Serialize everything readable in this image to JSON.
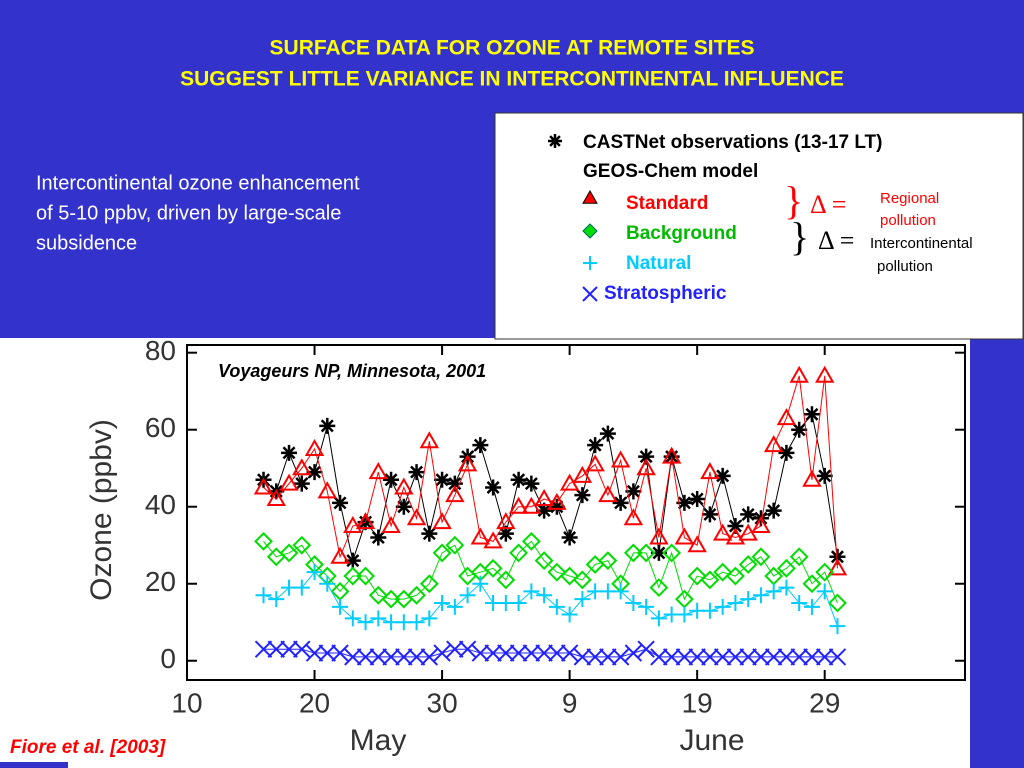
{
  "title": [
    "SURFACE DATA FOR OZONE AT REMOTE SITES",
    "SUGGEST LITTLE VARIANCE IN INTERCONTINENTAL INFLUENCE"
  ],
  "text": [
    "Intercontinental ozone enhancement",
    "of 5-10 ppbv, driven by large-scale",
    "subsidence"
  ],
  "citation": "Fiore et al. [2003]",
  "legend": {
    "model_label": "GEOS-Chem model",
    "brace": "}",
    "delta": "Δ =",
    "regional": [
      "Regional",
      "pollution"
    ],
    "intercontinental": [
      "Intercontinental",
      "pollution"
    ]
  },
  "chart_data": {
    "type": "line",
    "annotation": "Voyageurs NP, Minnesota, 2001",
    "ylabel": "Ozone (ppbv)",
    "months": [
      "May",
      "June"
    ],
    "x": [
      16,
      17,
      18,
      19,
      20,
      21,
      22,
      23,
      24,
      25,
      26,
      27,
      28,
      29,
      30,
      31,
      32,
      33,
      34,
      35,
      36,
      37,
      38,
      39,
      40,
      41,
      42,
      43,
      44,
      45,
      46,
      47,
      48,
      49,
      50,
      51,
      52,
      53,
      54,
      55,
      56,
      57,
      58,
      59,
      60,
      61
    ],
    "xlim": [
      10,
      71
    ],
    "xticks": [
      10,
      20,
      30,
      {
        "value": 40,
        "label": "9"
      },
      {
        "value": 50,
        "label": "19"
      },
      {
        "value": 60,
        "label": "29"
      }
    ],
    "ylim": [
      -5,
      82
    ],
    "yticks": [
      0,
      20,
      40,
      60,
      80
    ],
    "series": [
      {
        "name": "CASTNet observations (13-17 LT)",
        "color": "#000000",
        "marker": "star",
        "values": [
          47,
          44,
          54,
          46,
          49,
          61,
          41,
          26,
          36,
          32,
          47,
          40,
          49,
          33,
          47,
          46,
          53,
          56,
          45,
          33,
          47,
          46,
          39,
          40,
          32,
          43,
          56,
          59,
          41,
          44,
          53,
          28,
          53,
          41,
          42,
          38,
          48,
          35,
          38,
          37,
          39,
          54,
          60,
          64,
          48,
          27
        ]
      },
      {
        "name": "Standard",
        "color": "#ff0000",
        "marker": "triangle",
        "values": [
          45,
          42,
          46,
          50,
          55,
          44,
          27,
          35,
          36,
          49,
          35,
          45,
          37,
          57,
          36,
          43,
          51,
          32,
          31,
          36,
          40,
          40,
          42,
          41,
          46,
          48,
          51,
          43,
          52,
          37,
          50,
          32,
          53,
          32,
          30,
          49,
          33,
          32,
          33,
          35,
          56,
          63,
          74,
          47,
          74,
          24
        ]
      },
      {
        "name": "Background",
        "color": "#00dd00",
        "marker": "diamond",
        "values": [
          31,
          27,
          28,
          30,
          25,
          22,
          18,
          22,
          22,
          17,
          16,
          16,
          17,
          20,
          28,
          30,
          22,
          23,
          24,
          21,
          28,
          31,
          26,
          23,
          22,
          21,
          25,
          26,
          20,
          28,
          28,
          19,
          28,
          16,
          22,
          21,
          23,
          22,
          25,
          27,
          22,
          24,
          27,
          20,
          23,
          15
        ]
      },
      {
        "name": "Natural",
        "color": "#00ccff",
        "marker": "plus",
        "values": [
          17,
          16,
          19,
          19,
          23,
          20,
          14,
          11,
          10,
          11,
          10,
          10,
          10,
          11,
          15,
          14,
          17,
          20,
          15,
          15,
          15,
          18,
          17,
          14,
          12,
          16,
          18,
          18,
          18,
          15,
          14,
          11,
          12,
          12,
          13,
          13,
          14,
          15,
          16,
          17,
          18,
          19,
          15,
          14,
          18,
          9
        ]
      },
      {
        "name": "Stratospheric",
        "color": "#2222ff",
        "marker": "x",
        "values": [
          3,
          3,
          3,
          3,
          2,
          2,
          2,
          1,
          1,
          1,
          1,
          1,
          1,
          1,
          2,
          3,
          3,
          2,
          2,
          2,
          2,
          2,
          2,
          2,
          2,
          1,
          1,
          1,
          1,
          2,
          3,
          1,
          1,
          1,
          1,
          1,
          1,
          1,
          1,
          1,
          1,
          1,
          1,
          1,
          1,
          1
        ]
      }
    ]
  }
}
